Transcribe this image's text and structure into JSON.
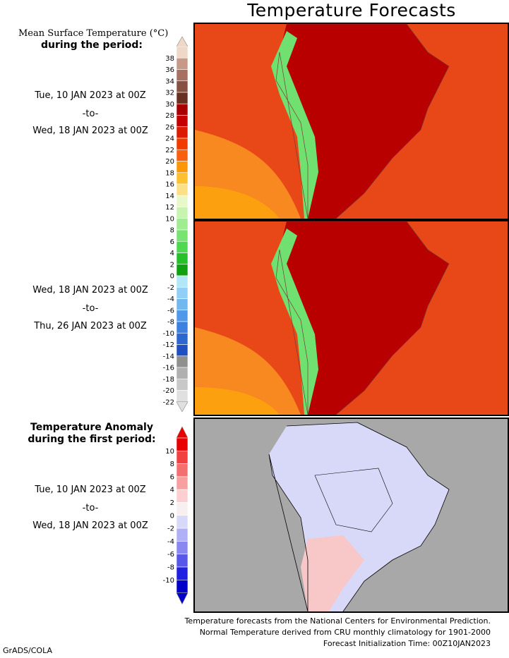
{
  "title": "Temperature Forecasts",
  "legend_top": {
    "heading_line1": "Mean Surface Temperature (°C)",
    "heading_line2": "during the period:",
    "ticks": [
      "38",
      "36",
      "34",
      "32",
      "30",
      "28",
      "26",
      "24",
      "22",
      "20",
      "18",
      "16",
      "14",
      "12",
      "10",
      "8",
      "6",
      "4",
      "2",
      "0",
      "-2",
      "-4",
      "-6",
      "-8",
      "-10",
      "-12",
      "-14",
      "-16",
      "-18",
      "-20",
      "-22"
    ],
    "colors": [
      "#f0d8c8",
      "#c89888",
      "#a87060",
      "#885040",
      "#683020",
      "#a80000",
      "#c40000",
      "#dc1c00",
      "#f03c00",
      "#f86010",
      "#fc9808",
      "#fcc030",
      "#fce088",
      "#e8f8c8",
      "#c8f4b0",
      "#a0ec90",
      "#78e470",
      "#50d850",
      "#28c028",
      "#10a010",
      "#b0e8f8",
      "#90d0f8",
      "#70b8f0",
      "#5098e8",
      "#3c80e0",
      "#2c68d0",
      "#2050c0",
      "#909090",
      "#b0b0b0",
      "#c8c8c8",
      "#e0e0e0"
    ]
  },
  "period1": {
    "start": "Tue, 10 JAN 2023 at 00Z",
    "sep": "-to-",
    "end": "Wed, 18 JAN 2023 at 00Z"
  },
  "period2": {
    "start": "Wed, 18 JAN 2023 at 00Z",
    "sep": "-to-",
    "end": "Thu, 26 JAN 2023 at 00Z"
  },
  "legend_anom": {
    "heading_line1": "Temperature Anomaly",
    "heading_line2": "during the first period:",
    "ticks": [
      "10",
      "8",
      "6",
      "4",
      "2",
      "0",
      "-2",
      "-4",
      "-6",
      "-8",
      "-10"
    ],
    "colors": [
      "#e80000",
      "#f04040",
      "#f47070",
      "#f8a0a0",
      "#fcd0d0",
      "#f8f0f0",
      "#d8d8f8",
      "#b0b0f8",
      "#8888f0",
      "#5858e8",
      "#2020e0",
      "#0000c8"
    ]
  },
  "period3": {
    "start": "Tue, 10 JAN 2023 at 00Z",
    "sep": "-to-",
    "end": "Wed, 18 JAN 2023 at 00Z"
  },
  "footer": {
    "line1": "Temperature forecasts from the National Centers for Environmental Prediction.",
    "line2": "Normal Temperature derived from CRU monthly climatology for 1901-2000",
    "line3": "Forecast Initialization Time: 00Z10JAN2023"
  },
  "credit": "GrADS/COLA",
  "map_colors": {
    "ocean_warm": "#e84818",
    "ocean_cool": "#f88820",
    "ocean_cooler": "#fca010",
    "land_hot": "#b80000",
    "andes": "#70e070",
    "anom_ocean": "#a8a8a8",
    "anom_land": "#d8d8f8"
  }
}
